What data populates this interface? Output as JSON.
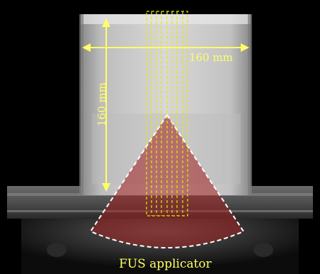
{
  "annotations": {
    "width_label": "160 mm",
    "height_label": "160 mm",
    "applicator_label": "FUS applicator"
  },
  "colors": {
    "annotation": "#ffff66",
    "beam_fill": "#a02020",
    "beam_outline": "#ffffff",
    "phantom": "#d6d6d6",
    "background": "#000000"
  }
}
